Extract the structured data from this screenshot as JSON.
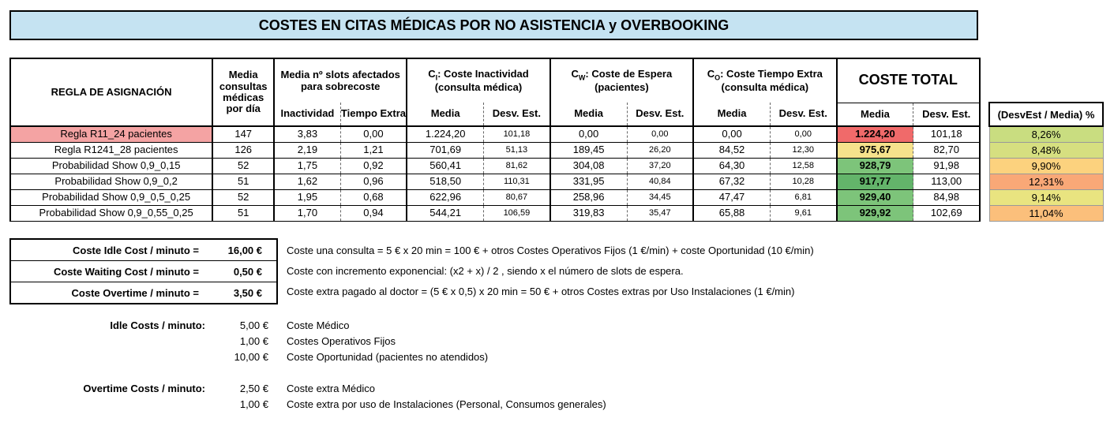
{
  "title": "COSTES EN CITAS MÉDICAS POR NO ASISTENCIA y OVERBOOKING",
  "table": {
    "hdr_rule": "REGLA DE ASIGNACIÓN",
    "hdr_media_line1": "Media",
    "hdr_media_line2": "consultas",
    "hdr_media_line3": "médicas",
    "hdr_media_line4": "por día",
    "hdr_slots_line1": "Media nº slots afectados",
    "hdr_slots_line2": "para sobrecoste",
    "hdr_inactividad": "Inactividad",
    "hdr_tiempo_extra": "Tiempo Extra",
    "hdr_ci_sym": "C",
    "hdr_ci_sub": "I",
    "hdr_ci_rest": ": Coste Inactividad",
    "hdr_ci_line2": "(consulta médica)",
    "hdr_cw_sym": "C",
    "hdr_cw_sub": "W",
    "hdr_cw_rest": ": Coste de Espera",
    "hdr_cw_line2": "(pacientes)",
    "hdr_co_sym": "C",
    "hdr_co_sub": "O",
    "hdr_co_rest": ": Coste Tiempo Extra",
    "hdr_co_line2": "(consulta médica)",
    "hdr_total": "COSTE TOTAL",
    "hdr_sub_media": "Media",
    "hdr_sub_desv": "Desv. Est.",
    "rows": [
      {
        "name": "Regla R11_24 pacientes",
        "media": "147",
        "inact": "3,83",
        "textra": "0,00",
        "ci_m": "1.224,20",
        "ci_d": "101,18",
        "cw_m": "0,00",
        "cw_d": "0,00",
        "co_m": "0,00",
        "co_d": "0,00",
        "tot_m": "1.224,20",
        "tot_d": "101,18",
        "pct": "8,26%",
        "tot_color": "#f06a6a",
        "pct_color": "#c9dd80",
        "row_red": true
      },
      {
        "name": "Regla R1241_28 pacientes",
        "media": "126",
        "inact": "2,19",
        "textra": "1,21",
        "ci_m": "701,69",
        "ci_d": "51,13",
        "cw_m": "189,45",
        "cw_d": "26,20",
        "co_m": "84,52",
        "co_d": "12,30",
        "tot_m": "975,67",
        "tot_d": "82,70",
        "pct": "8,48%",
        "tot_color": "#f6e28c",
        "pct_color": "#d6df80",
        "row_red": false
      },
      {
        "name": "Probabilidad Show 0,9_0,15",
        "media": "52",
        "inact": "1,75",
        "textra": "0,92",
        "ci_m": "560,41",
        "ci_d": "81,62",
        "cw_m": "304,08",
        "cw_d": "37,20",
        "co_m": "64,30",
        "co_d": "12,58",
        "tot_m": "928,79",
        "tot_d": "91,98",
        "pct": "9,90%",
        "tot_color": "#7dc47a",
        "pct_color": "#fcd27e",
        "row_red": false
      },
      {
        "name": "Probabilidad Show 0,9_0,2",
        "media": "51",
        "inact": "1,62",
        "textra": "0,96",
        "ci_m": "518,50",
        "ci_d": "110,31",
        "cw_m": "331,95",
        "cw_d": "40,84",
        "co_m": "67,32",
        "co_d": "10,28",
        "tot_m": "917,77",
        "tot_d": "113,00",
        "pct": "12,31%",
        "tot_color": "#63b46a",
        "pct_color": "#f9a877",
        "row_red": false
      },
      {
        "name": "Probabilidad Show 0,9_0,5_0,25",
        "media": "52",
        "inact": "1,95",
        "textra": "0,68",
        "ci_m": "622,96",
        "ci_d": "80,67",
        "cw_m": "258,96",
        "cw_d": "34,45",
        "co_m": "47,47",
        "co_d": "6,81",
        "tot_m": "929,40",
        "tot_d": "84,98",
        "pct": "9,14%",
        "tot_color": "#7dc47a",
        "pct_color": "#e9e480",
        "row_red": false
      },
      {
        "name": "Probabilidad Show 0,9_0,55_0,25",
        "media": "51",
        "inact": "1,70",
        "textra": "0,94",
        "ci_m": "544,21",
        "ci_d": "106,59",
        "cw_m": "319,83",
        "cw_d": "35,47",
        "co_m": "65,88",
        "co_d": "9,61",
        "tot_m": "929,92",
        "tot_d": "102,69",
        "pct": "11,04%",
        "tot_color": "#7dc47a",
        "pct_color": "#fbbf7b",
        "row_red": false
      }
    ]
  },
  "side_header": "(DesvEst / Media) %",
  "unit_costs": [
    {
      "label": "Coste Idle Cost / minuto =",
      "value": "16,00 €",
      "desc": "Coste una consulta = 5 € x 20 min = 100 €  +  otros Costes Operativos Fijos (1 €/min) + coste Oportunidad (10 €/min)"
    },
    {
      "label": "Coste Waiting Cost / minuto =",
      "value": "0,50 €",
      "desc": "Coste con incremento exponencial: (x2 + x) / 2 , siendo x el número de slots de espera."
    },
    {
      "label": "Coste Overtime / minuto =",
      "value": "3,50 €",
      "desc": "Coste extra pagado al doctor = (5 € x 0,5) x 20 min = 50 €  +  otros Costes extras por Uso Instalaciones (1 €/min)"
    }
  ],
  "idle_costs": {
    "label": "Idle Costs / minuto:",
    "items": [
      {
        "value": "5,00 €",
        "desc": "Coste Médico"
      },
      {
        "value": "1,00 €",
        "desc": "Costes Operativos Fijos"
      },
      {
        "value": "10,00 €",
        "desc": "Coste Oportunidad (pacientes no atendidos)"
      }
    ]
  },
  "overtime_costs": {
    "label": "Overtime Costs / minuto:",
    "items": [
      {
        "value": "2,50 €",
        "desc": "Coste extra Médico"
      },
      {
        "value": "1,00 €",
        "desc": "Coste extra por uso de Instalaciones (Personal, Consumos generales)"
      }
    ]
  }
}
